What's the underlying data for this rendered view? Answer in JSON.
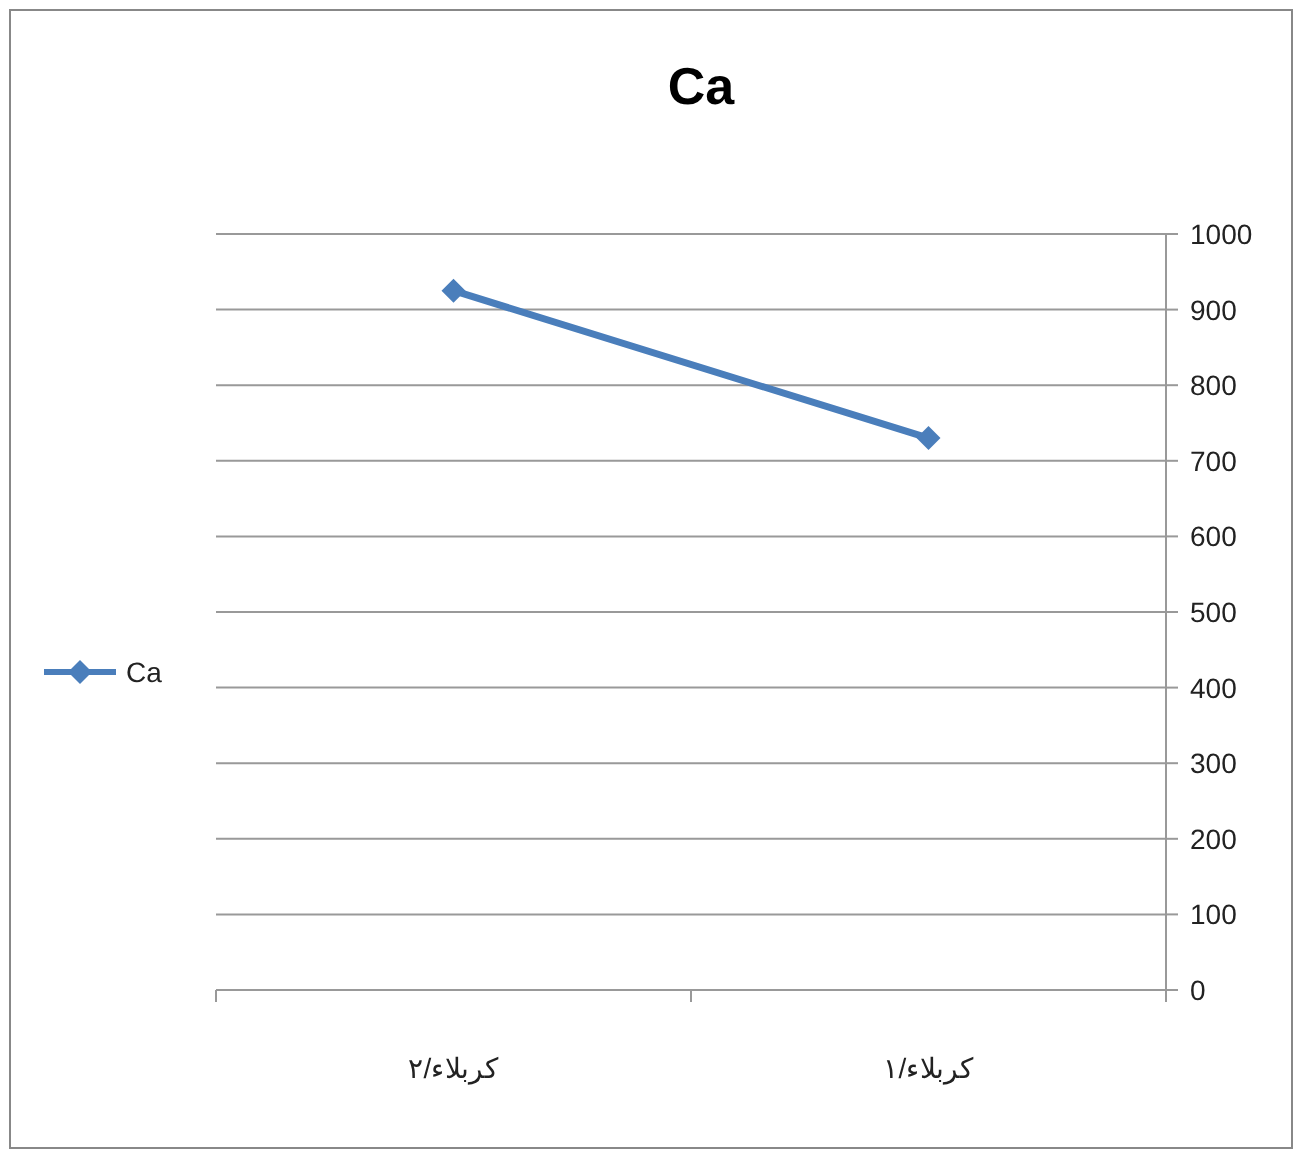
{
  "chart_data": {
    "type": "line",
    "title": "Ca",
    "categories": [
      "كربلاء/٢",
      "كربلاء/١"
    ],
    "series": [
      {
        "name": "Ca",
        "color": "#4a7ebb",
        "values": [
          925,
          730
        ]
      }
    ],
    "ylim": [
      0,
      1000
    ],
    "yticks": [
      0,
      100,
      200,
      300,
      400,
      500,
      600,
      700,
      800,
      900,
      1000
    ],
    "grid": "y",
    "legend": "left",
    "marker": "diamond",
    "line_style": "solid"
  }
}
